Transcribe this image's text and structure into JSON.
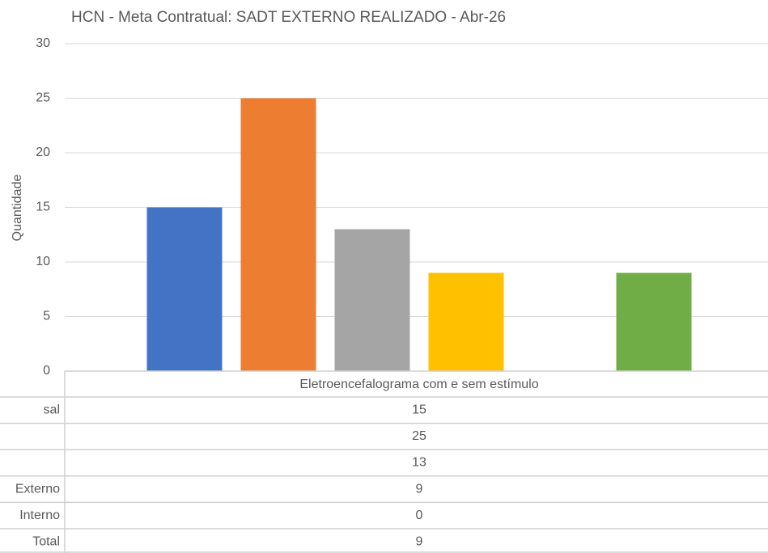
{
  "chart_data": {
    "type": "bar",
    "title": "HCN - Meta Contratual: SADT EXTERNO REALIZADO - Abr-26",
    "y_label": "Quantidade",
    "categories": [
      "Eletroencefalograma com e sem estímulo"
    ],
    "series": [
      {
        "name": "sal",
        "color": "#4472c4",
        "values": [
          15
        ]
      },
      {
        "name": null,
        "color": "#ed7d31",
        "values": [
          25
        ]
      },
      {
        "name": null,
        "color": "#a5a5a5",
        "values": [
          13
        ]
      },
      {
        "name": "Externo",
        "color": "#ffc000",
        "values": [
          9
        ]
      },
      {
        "name": "Interno",
        "color": "#5b9bd5",
        "values": [
          0
        ]
      },
      {
        "name": "Total",
        "color": "#70ad47",
        "values": [
          9
        ]
      }
    ],
    "ylim": [
      0,
      30
    ],
    "yticks": [
      0,
      5,
      10,
      15,
      20,
      25,
      30
    ],
    "grid": true
  }
}
